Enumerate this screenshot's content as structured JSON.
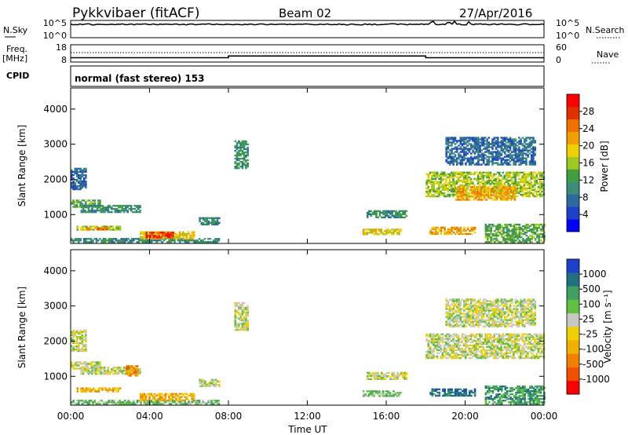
{
  "header": {
    "station": "Pykkvibaer (fitACF)",
    "beam": "Beam 02",
    "date": "27/Apr/2016"
  },
  "nsky_panel": {
    "left_label": "N.Sky",
    "right_label": "N.Search",
    "left_ticks": [
      "10^5",
      "10^0"
    ],
    "right_ticks": [
      "10^5",
      "10^0"
    ]
  },
  "freq_panel": {
    "left_label_1": "Freq.",
    "left_label_2": "[MHz]",
    "right_label": "Nave",
    "left_ticks": [
      "18",
      "8"
    ],
    "right_ticks": [
      "60",
      "0"
    ],
    "freq_levels": [
      {
        "t0": 0,
        "t1": 8,
        "value": 10.5
      },
      {
        "t0": 8,
        "t1": 18,
        "value": 11.5
      },
      {
        "t0": 18,
        "t1": 24,
        "value": 10.5
      }
    ]
  },
  "cpid_panel": {
    "label": "CPID",
    "text": "normal (fast stereo) 153"
  },
  "chart_data": [
    {
      "type": "heatmap",
      "name": "power",
      "xlabel": "",
      "ylabel": "Slant Range [km]",
      "x_ticks": [
        "00:00",
        "04:00",
        "08:00",
        "12:00",
        "16:00",
        "20:00",
        "00:00"
      ],
      "xlim": [
        0,
        24
      ],
      "y_ticks": [
        "1000",
        "2000",
        "3000",
        "4000"
      ],
      "ylim": [
        180,
        4600
      ],
      "colorbar_label": "Power [dB]",
      "colorbar_ticks": [
        "28",
        "24",
        "20",
        "16",
        "12",
        "8",
        "4"
      ],
      "colors": [
        "#0000ff",
        "#1e3fc8",
        "#2a6aa0",
        "#3c8c78",
        "#40a040",
        "#a0c820",
        "#f0d000",
        "#f0a000",
        "#f07000",
        "#e03000",
        "#ff0000"
      ],
      "regions": [
        {
          "t0": 0.0,
          "t1": 1.5,
          "r0": 1200,
          "r1": 1400,
          "level": 4
        },
        {
          "t0": 0.0,
          "t1": 0.8,
          "r0": 1700,
          "r1": 2300,
          "level": 2
        },
        {
          "t0": 0.5,
          "t1": 3.5,
          "r0": 1050,
          "r1": 1250,
          "level": 3
        },
        {
          "t0": 0.3,
          "t1": 2.5,
          "r0": 550,
          "r1": 680,
          "level": 5
        },
        {
          "t0": 0.8,
          "t1": 1.8,
          "r0": 560,
          "r1": 650,
          "level": 8
        },
        {
          "t0": 0.0,
          "t1": 7.5,
          "r0": 200,
          "r1": 330,
          "level": 3
        },
        {
          "t0": 3.5,
          "t1": 6.2,
          "r0": 300,
          "r1": 520,
          "level": 6
        },
        {
          "t0": 3.8,
          "t1": 5.2,
          "r0": 330,
          "r1": 470,
          "level": 9
        },
        {
          "t0": 6.5,
          "t1": 7.5,
          "r0": 700,
          "r1": 900,
          "level": 3
        },
        {
          "t0": 8.3,
          "t1": 9.0,
          "r0": 2300,
          "r1": 3100,
          "level": 3
        },
        {
          "t0": 15.0,
          "t1": 17.0,
          "r0": 900,
          "r1": 1100,
          "level": 3
        },
        {
          "t0": 14.8,
          "t1": 16.7,
          "r0": 420,
          "r1": 580,
          "level": 6
        },
        {
          "t0": 18.0,
          "t1": 24.0,
          "r0": 1500,
          "r1": 2200,
          "level": 5
        },
        {
          "t0": 19.5,
          "t1": 22.5,
          "r0": 1400,
          "r1": 1800,
          "level": 7
        },
        {
          "t0": 19.0,
          "t1": 23.5,
          "r0": 2400,
          "r1": 3200,
          "level": 2
        },
        {
          "t0": 18.2,
          "t1": 20.5,
          "r0": 430,
          "r1": 650,
          "level": 7
        },
        {
          "t0": 21.0,
          "t1": 24.0,
          "r0": 200,
          "r1": 700,
          "level": 4
        }
      ]
    },
    {
      "type": "heatmap",
      "name": "velocity",
      "xlabel": "Time UT",
      "ylabel": "Slant Range [km]",
      "x_ticks": [
        "00:00",
        "04:00",
        "08:00",
        "12:00",
        "16:00",
        "20:00",
        "00:00"
      ],
      "xlim": [
        0,
        24
      ],
      "y_ticks": [
        "1000",
        "2000",
        "3000",
        "4000"
      ],
      "ylim": [
        180,
        4600
      ],
      "colorbar_label": "Velocity [m s⁻¹]",
      "colorbar_ticks": [
        "1000",
        "500",
        "100",
        "25",
        "-25",
        "-100",
        "-500",
        "-1000"
      ],
      "colors": [
        "#ff0000",
        "#f05000",
        "#f08000",
        "#f0b000",
        "#f0d000",
        "#c8c8c0",
        "#60c040",
        "#40a060",
        "#207080",
        "#1e40c8"
      ],
      "regions": [
        {
          "t0": 0.0,
          "t1": 1.5,
          "r0": 1200,
          "r1": 1400,
          "level": 5
        },
        {
          "t0": 0.0,
          "t1": 0.8,
          "r0": 1700,
          "r1": 2300,
          "level": 5
        },
        {
          "t0": 0.5,
          "t1": 3.5,
          "r0": 1050,
          "r1": 1250,
          "level": 5
        },
        {
          "t0": 0.3,
          "t1": 2.5,
          "r0": 550,
          "r1": 680,
          "level": 3
        },
        {
          "t0": 2.8,
          "t1": 3.4,
          "r0": 1000,
          "r1": 1300,
          "level": 2
        },
        {
          "t0": 0.0,
          "t1": 7.5,
          "r0": 200,
          "r1": 330,
          "level": 6
        },
        {
          "t0": 3.5,
          "t1": 6.2,
          "r0": 300,
          "r1": 520,
          "level": 3
        },
        {
          "t0": 6.5,
          "t1": 7.5,
          "r0": 700,
          "r1": 900,
          "level": 5
        },
        {
          "t0": 8.3,
          "t1": 9.0,
          "r0": 2300,
          "r1": 3100,
          "level": 5
        },
        {
          "t0": 15.0,
          "t1": 17.0,
          "r0": 900,
          "r1": 1100,
          "level": 5
        },
        {
          "t0": 14.8,
          "t1": 16.7,
          "r0": 420,
          "r1": 580,
          "level": 6
        },
        {
          "t0": 18.0,
          "t1": 24.0,
          "r0": 1500,
          "r1": 2200,
          "level": 5
        },
        {
          "t0": 19.0,
          "t1": 23.5,
          "r0": 2400,
          "r1": 3200,
          "level": 5
        },
        {
          "t0": 18.2,
          "t1": 20.5,
          "r0": 430,
          "r1": 650,
          "level": 8
        },
        {
          "t0": 21.0,
          "t1": 24.0,
          "r0": 200,
          "r1": 700,
          "level": 7
        }
      ]
    }
  ]
}
